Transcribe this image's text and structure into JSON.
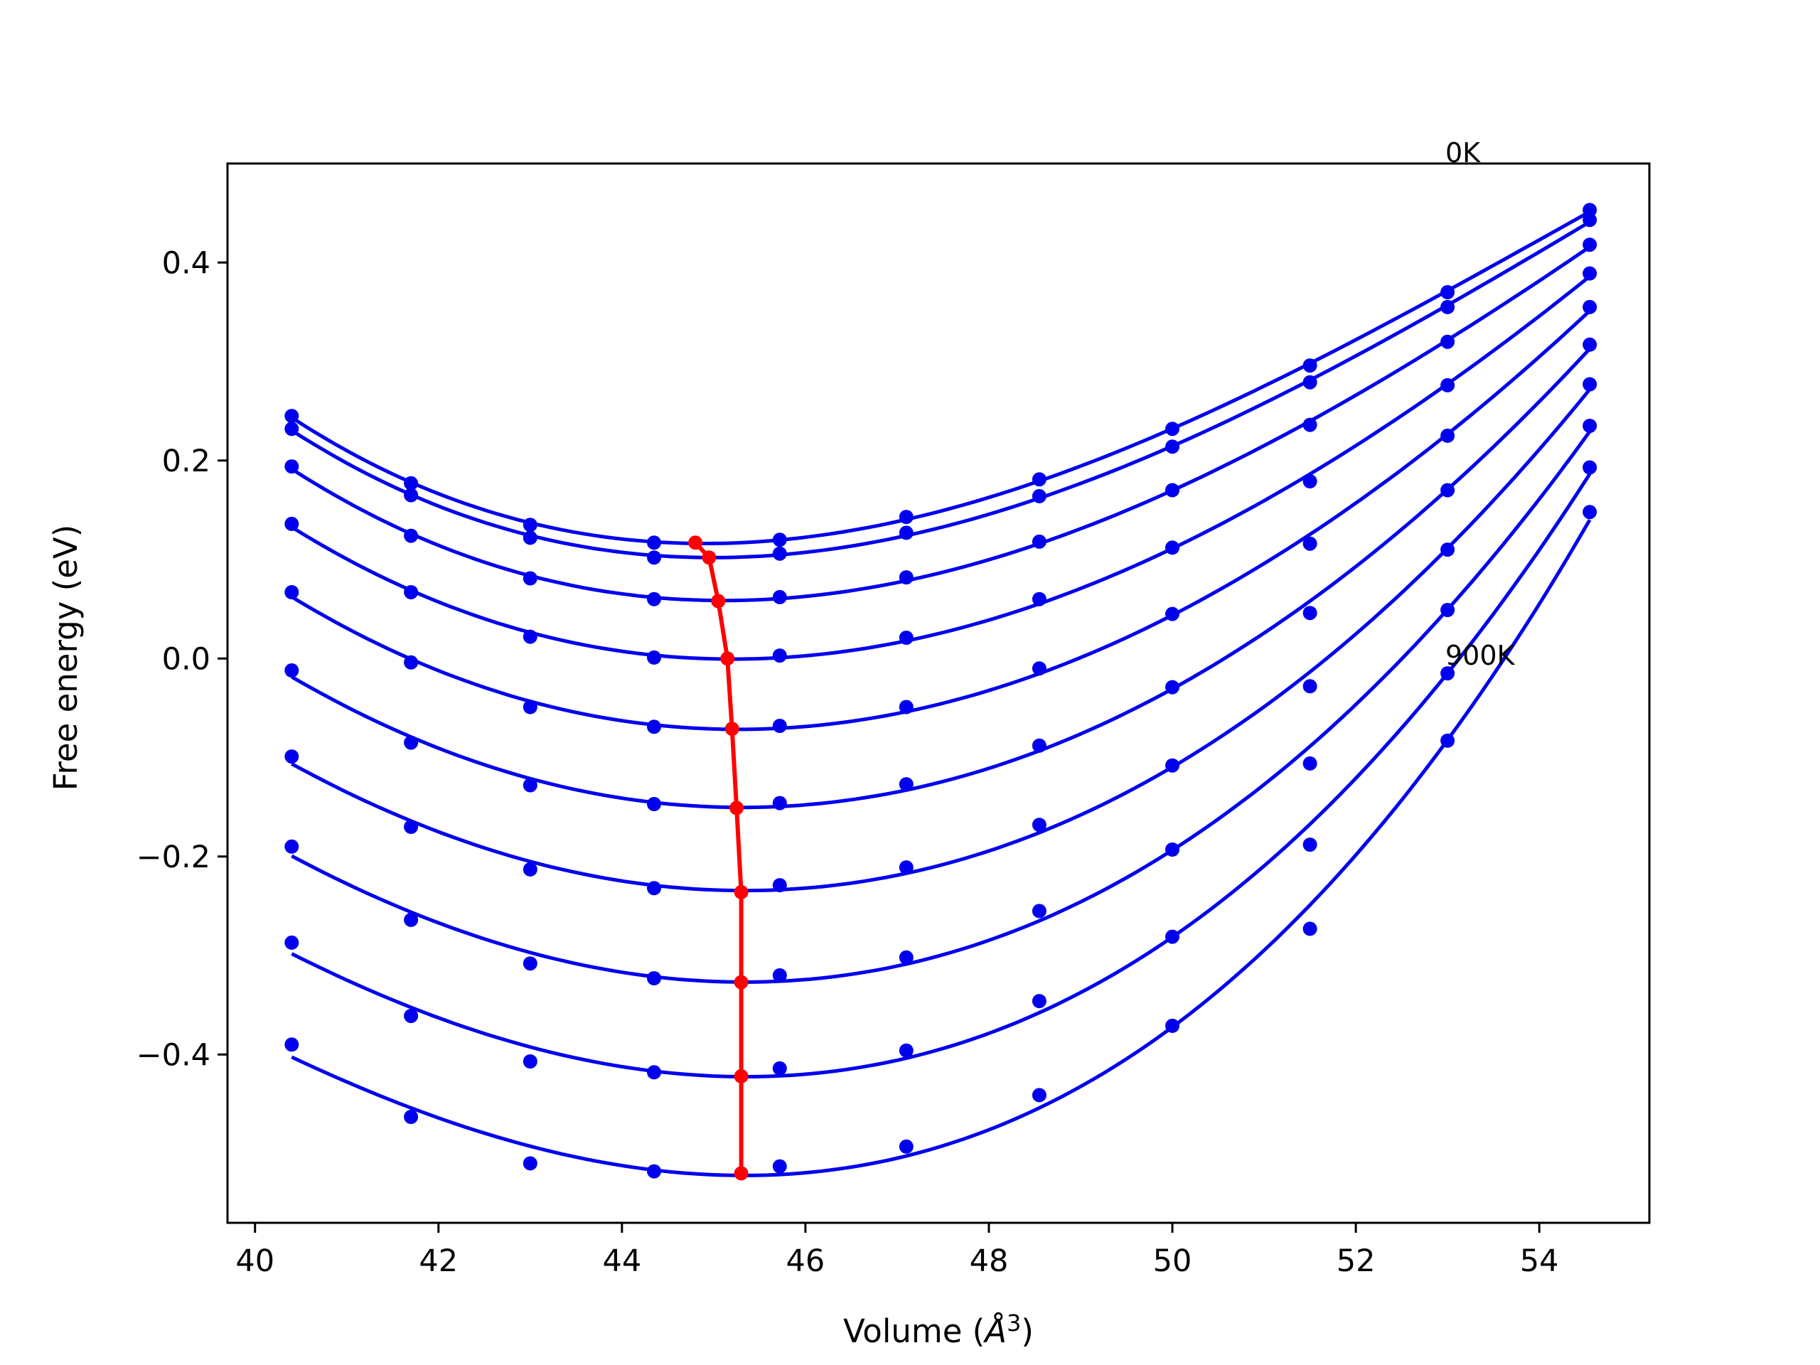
{
  "chart_data": {
    "type": "line",
    "title": "",
    "xlabel_prefix": "Volume (",
    "xlabel_unit": "Å",
    "xlabel_exp": "3",
    "xlabel_suffix": ")",
    "ylabel": "Free energy (eV)",
    "xlim": [
      39.7,
      55.2
    ],
    "ylim": [
      -0.57,
      0.5
    ],
    "xticks": [
      40,
      42,
      44,
      46,
      48,
      50,
      52,
      54
    ],
    "yticks": [
      -0.4,
      -0.2,
      0.0,
      0.2,
      0.4
    ],
    "xtick_labels": [
      "40",
      "42",
      "44",
      "46",
      "48",
      "50",
      "52",
      "54"
    ],
    "ytick_labels": [
      "−0.4",
      "−0.2",
      "0.0",
      "0.2",
      "0.4"
    ],
    "grid": false,
    "legend": "none",
    "colors": {
      "points": "#0000ee",
      "curves": "#0000ee",
      "minimum": "#ff0000"
    },
    "annotations": [
      {
        "text": "0K",
        "x": 53.0,
        "y": 0.505
      },
      {
        "text": "900K",
        "x": 53.0,
        "y": 0.0
      }
    ],
    "volumes": [
      40.4,
      41.7,
      43.0,
      44.35,
      45.72,
      47.1,
      48.55,
      50.0,
      51.5,
      53.0,
      54.55
    ],
    "series": [
      {
        "values": [
          0.245,
          0.177,
          0.135,
          0.117,
          0.12,
          0.143,
          0.181,
          0.232,
          0.296,
          0.37,
          0.453
        ],
        "min": [
          44.8,
          0.117
        ]
      },
      {
        "values": [
          0.232,
          0.165,
          0.122,
          0.102,
          0.106,
          0.127,
          0.164,
          0.214,
          0.279,
          0.355,
          0.443
        ],
        "min": [
          44.95,
          0.102
        ]
      },
      {
        "values": [
          0.194,
          0.124,
          0.081,
          0.06,
          0.062,
          0.082,
          0.118,
          0.17,
          0.236,
          0.32,
          0.418
        ],
        "min": [
          45.05,
          0.058
        ]
      },
      {
        "values": [
          0.136,
          0.067,
          0.022,
          0.001,
          0.003,
          0.021,
          0.06,
          0.112,
          0.179,
          0.276,
          0.389
        ],
        "min": [
          45.15,
          0.0
        ]
      },
      {
        "values": [
          0.067,
          -0.004,
          -0.049,
          -0.069,
          -0.068,
          -0.049,
          -0.01,
          0.045,
          0.116,
          0.225,
          0.355
        ],
        "min": [
          45.2,
          -0.071
        ]
      },
      {
        "values": [
          -0.012,
          -0.085,
          -0.128,
          -0.147,
          -0.146,
          -0.127,
          -0.088,
          -0.029,
          0.046,
          0.17,
          0.317
        ],
        "min": [
          45.25,
          -0.151
        ]
      },
      {
        "values": [
          -0.099,
          -0.17,
          -0.213,
          -0.232,
          -0.229,
          -0.211,
          -0.168,
          -0.108,
          -0.028,
          0.11,
          0.277
        ],
        "min": [
          45.3,
          -0.236
        ]
      },
      {
        "values": [
          -0.19,
          -0.264,
          -0.308,
          -0.323,
          -0.32,
          -0.302,
          -0.255,
          -0.193,
          -0.106,
          0.049,
          0.235
        ],
        "min": [
          45.3,
          -0.327
        ]
      },
      {
        "values": [
          -0.287,
          -0.361,
          -0.407,
          -0.418,
          -0.414,
          -0.396,
          -0.346,
          -0.281,
          -0.188,
          -0.015,
          0.193
        ],
        "min": [
          45.3,
          -0.422
        ]
      },
      {
        "values": [
          -0.39,
          -0.463,
          -0.51,
          -0.518,
          -0.513,
          -0.493,
          -0.441,
          -0.371,
          -0.273,
          -0.083,
          0.148
        ],
        "min": [
          45.3,
          -0.52
        ]
      }
    ]
  }
}
